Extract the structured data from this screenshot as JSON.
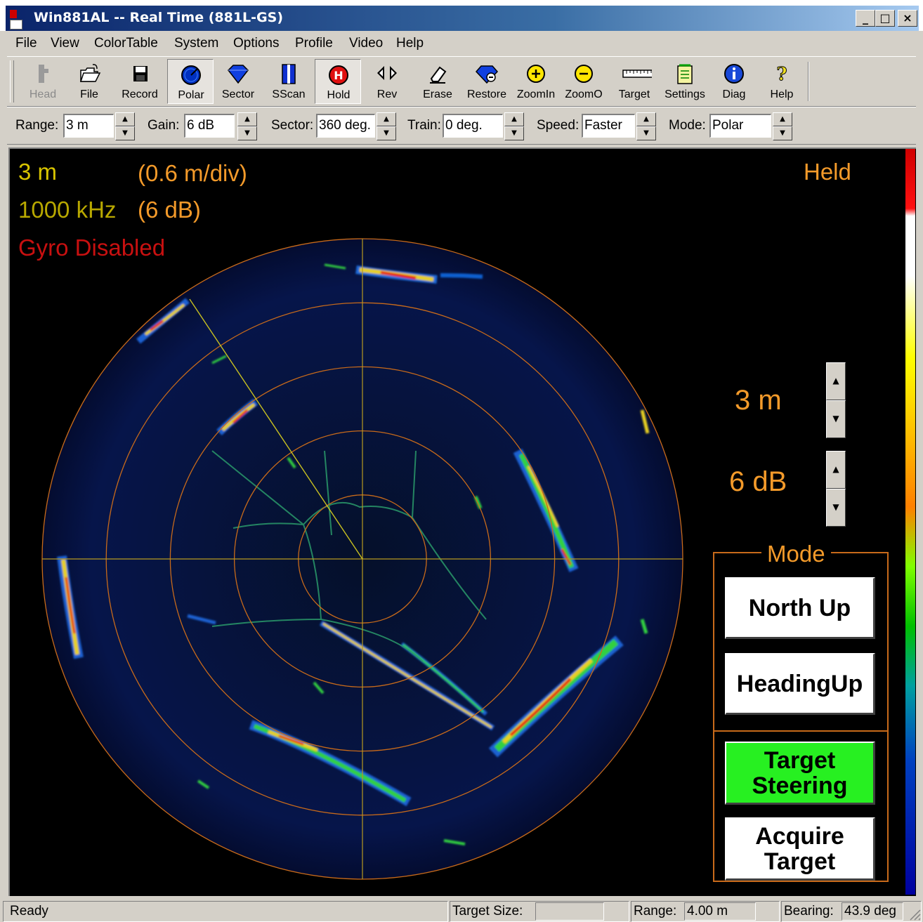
{
  "window": {
    "title": "Win881AL -- Real Time (881L-GS)",
    "buttons": [
      "_",
      "□",
      "×"
    ]
  },
  "menu": [
    "File",
    "View",
    "ColorTable",
    "System",
    "Options",
    "Profile",
    "Video",
    "Help"
  ],
  "toolbar": [
    {
      "label": "Head",
      "icon": "sonar-head-icon",
      "enabled": false
    },
    {
      "label": "File",
      "icon": "open-folder-icon",
      "enabled": true
    },
    {
      "label": "Record",
      "icon": "floppy-disk-icon",
      "enabled": true
    },
    {
      "label": "Polar",
      "icon": "polar-dial-icon",
      "enabled": true,
      "pressed": true
    },
    {
      "label": "Sector",
      "icon": "sector-diamond-icon",
      "enabled": true
    },
    {
      "label": "SScan",
      "icon": "sidescan-bars-icon",
      "enabled": true
    },
    {
      "label": "Hold",
      "icon": "hold-stop-icon",
      "enabled": true,
      "pressed": true
    },
    {
      "label": "Rev",
      "icon": "reverse-arrows-icon",
      "enabled": true
    },
    {
      "label": "Erase",
      "icon": "eraser-icon",
      "enabled": true
    },
    {
      "label": "Restore",
      "icon": "restore-icon",
      "enabled": true
    },
    {
      "label": "ZoomIn",
      "icon": "zoom-in-icon",
      "enabled": true
    },
    {
      "label": "ZoomO",
      "icon": "zoom-out-icon",
      "enabled": true
    },
    {
      "label": "Target",
      "icon": "ruler-icon",
      "enabled": true
    },
    {
      "label": "Settings",
      "icon": "notepad-icon",
      "enabled": true
    },
    {
      "label": "Diag",
      "icon": "info-icon",
      "enabled": true
    },
    {
      "label": "Help",
      "icon": "help-question-icon",
      "enabled": true
    }
  ],
  "controls": {
    "range": {
      "label": "Range:",
      "value": "3 m"
    },
    "gain": {
      "label": "Gain:",
      "value": "6 dB"
    },
    "sector": {
      "label": "Sector:",
      "value": "360 deg."
    },
    "train": {
      "label": "Train:",
      "value": "0 deg."
    },
    "speed": {
      "label": "Speed:",
      "value": "Faster"
    },
    "mode": {
      "label": "Mode:",
      "value": "Polar"
    }
  },
  "display": {
    "range": "3 m",
    "per_div": "(0.6 m/div)",
    "frequency": "1000 kHz",
    "gain": "(6 dB)",
    "gyro": "Gyro Disabled",
    "status": "Held",
    "range_control": "3 m",
    "gain_control": "6 dB",
    "mode_title": "Mode",
    "buttons": {
      "north_up": "North Up",
      "heading_up": "HeadingUp",
      "target_steering": "Target Steering",
      "acquire_target": "Acquire Target"
    },
    "colors": {
      "range_rings": "#c86a1a",
      "crosshair": "#b89a20",
      "bearing_line": "#c8c020",
      "target_steering_active": "#27f021"
    },
    "ring_count": 5
  },
  "statusbar": {
    "ready": "Ready",
    "target_size_label": "Target Size:",
    "target_size_value": "",
    "range_label": "Range:",
    "range_value": "4.00 m",
    "bearing_label": "Bearing:",
    "bearing_value": "43.9 deg"
  }
}
